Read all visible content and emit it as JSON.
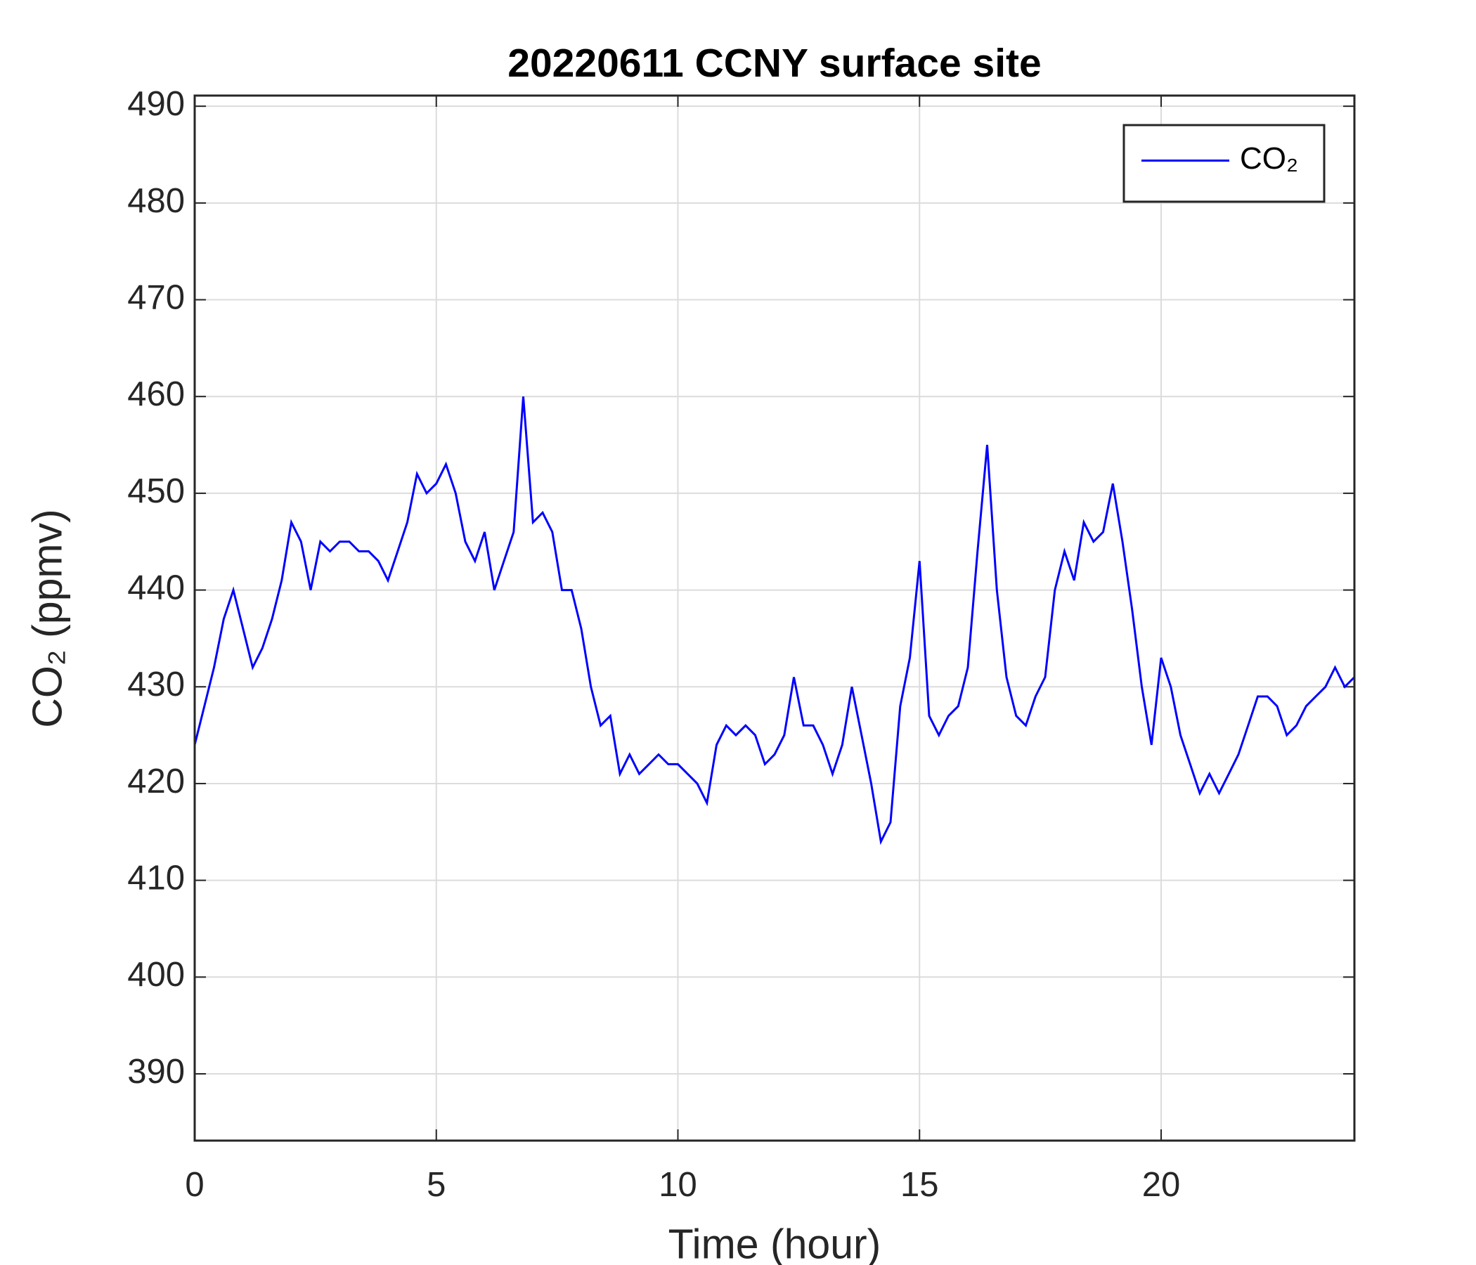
{
  "chart_data": {
    "type": "line",
    "title": "20220611 CCNY surface site",
    "xlabel": "Time (hour)",
    "ylabel": "CO₂ (ppmv)",
    "x": [
      0,
      0.2,
      0.4,
      0.6,
      0.8,
      1,
      1.2,
      1.4,
      1.6,
      1.8,
      2,
      2.2,
      2.4,
      2.6,
      2.8,
      3,
      3.2,
      3.4,
      3.6,
      3.8,
      4,
      4.2,
      4.4,
      4.6,
      4.8,
      5,
      5.2,
      5.4,
      5.6,
      5.8,
      6,
      6.2,
      6.4,
      6.6,
      6.8,
      7,
      7.2,
      7.4,
      7.6,
      7.8,
      8,
      8.2,
      8.4,
      8.6,
      8.8,
      9,
      9.2,
      9.4,
      9.6,
      9.8,
      10,
      10.2,
      10.4,
      10.6,
      10.8,
      11,
      11.2,
      11.4,
      11.6,
      11.8,
      12,
      12.2,
      12.4,
      12.6,
      12.8,
      13,
      13.2,
      13.4,
      13.6,
      13.8,
      14,
      14.2,
      14.4,
      14.6,
      14.8,
      15,
      15.2,
      15.4,
      15.6,
      15.8,
      16,
      16.2,
      16.4,
      16.6,
      16.8,
      17,
      17.2,
      17.4,
      17.6,
      17.8,
      18,
      18.2,
      18.4,
      18.6,
      18.8,
      19,
      19.2,
      19.4,
      19.6,
      19.8,
      20,
      20.2,
      20.4,
      20.6,
      20.8,
      21,
      21.2,
      21.4,
      21.6,
      21.8,
      22,
      22.2,
      22.4,
      22.6,
      22.8,
      23,
      23.2,
      23.4,
      23.6,
      23.8,
      24
    ],
    "series": [
      {
        "name": "CO₂",
        "color": "#0000ff",
        "values": [
          424,
          428,
          432,
          437,
          440,
          436,
          432,
          434,
          437,
          441,
          447,
          445,
          440,
          445,
          444,
          445,
          445,
          444,
          444,
          443,
          441,
          444,
          447,
          452,
          450,
          451,
          453,
          450,
          445,
          443,
          446,
          440,
          443,
          446,
          460,
          447,
          448,
          446,
          440,
          440,
          436,
          430,
          426,
          427,
          421,
          423,
          421,
          422,
          423,
          422,
          422,
          421,
          420,
          418,
          424,
          426,
          425,
          426,
          425,
          422,
          423,
          425,
          431,
          426,
          426,
          424,
          421,
          424,
          430,
          425,
          420,
          414,
          416,
          428,
          433,
          443,
          427,
          425,
          427,
          428,
          432,
          444,
          455,
          440,
          431,
          427,
          426,
          429,
          431,
          440,
          444,
          441,
          447,
          445,
          446,
          451,
          445,
          438,
          430,
          424,
          433,
          430,
          425,
          422,
          419,
          421,
          419,
          421,
          423,
          426,
          429,
          429,
          428,
          425,
          426,
          428,
          429,
          430,
          432,
          430,
          431
        ]
      }
    ],
    "xlim": [
      0,
      24
    ],
    "xticks": [
      0,
      5,
      10,
      15,
      20
    ],
    "ylim": [
      383.1,
      491.1
    ],
    "yticks": [
      390,
      400,
      410,
      420,
      430,
      440,
      450,
      460,
      470,
      480,
      490
    ],
    "grid": true,
    "legend": "upper right"
  }
}
